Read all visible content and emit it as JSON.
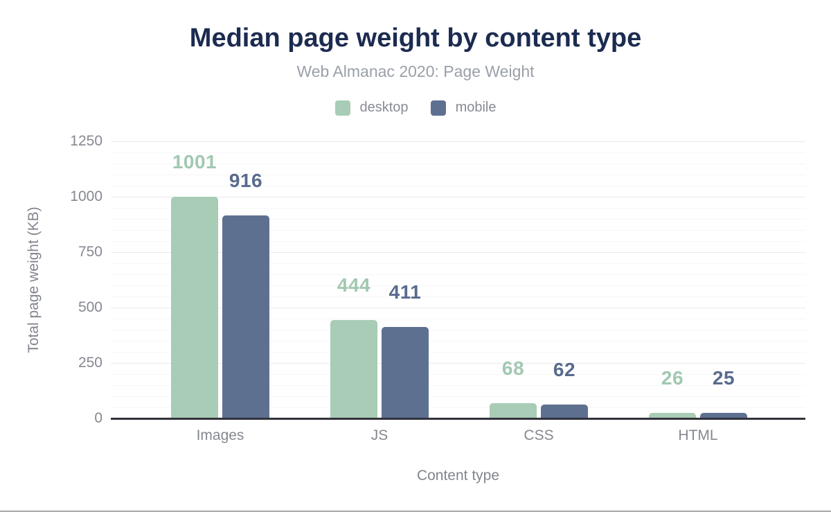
{
  "chart_data": {
    "type": "bar",
    "title": "Median page weight by content type",
    "subtitle": "Web Almanac 2020: Page Weight",
    "categories": [
      "Images",
      "JS",
      "CSS",
      "HTML"
    ],
    "series": [
      {
        "name": "desktop",
        "color": "#a8ccb6",
        "label_color": "#a2c8b1",
        "values": [
          1001,
          444,
          68,
          26
        ]
      },
      {
        "name": "mobile",
        "color": "#5e7090",
        "label_color": "#586b8d",
        "values": [
          916,
          411,
          62,
          25
        ]
      }
    ],
    "xlabel": "Content type",
    "ylabel": "Total page weight (KB)",
    "ylim": [
      0,
      1250
    ],
    "yticks": [
      0,
      250,
      500,
      750,
      1000,
      1250
    ],
    "minor_grid_step": 50,
    "grid": true,
    "legend_position": "top",
    "bar_value_labels": true
  },
  "theme": {
    "background": "#ffffff",
    "title_color": "#1c2b50",
    "subtitle_color": "#9aa0a8",
    "legend_text_color": "#878b93",
    "tick_label_color": "#868890",
    "axis_title_color": "#81858d",
    "axis_line_color": "#32333b",
    "grid_major_color": "#eaeaee",
    "grid_minor_color": "#f6f6f8",
    "bottom_border_color": "#a5a5a5"
  }
}
